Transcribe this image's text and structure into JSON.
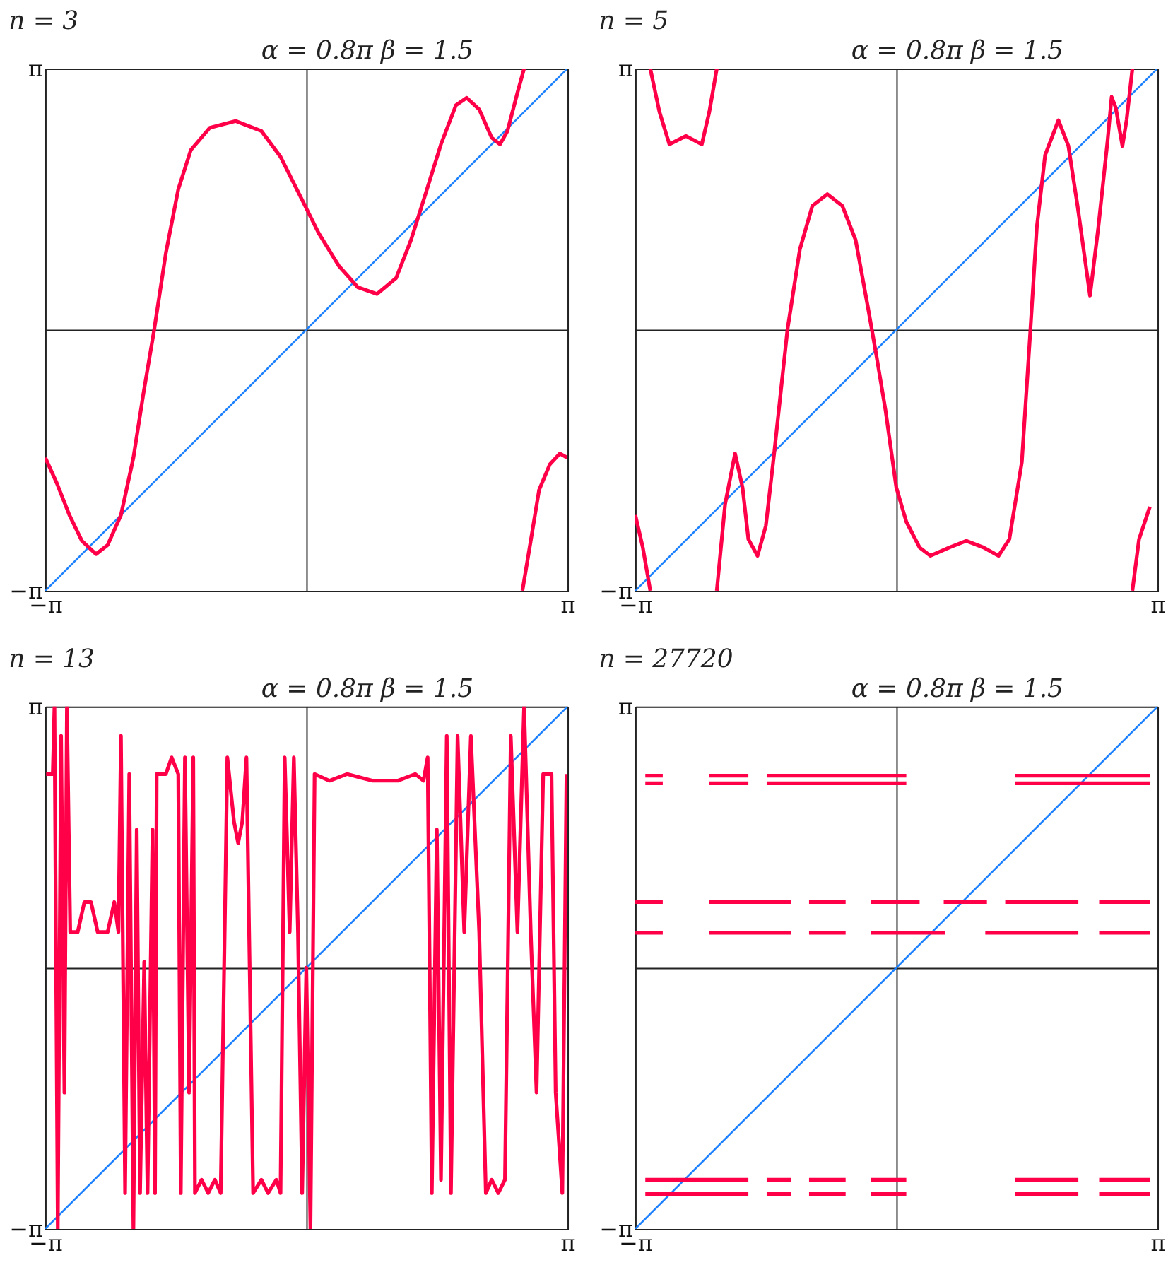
{
  "chart_data": [
    {
      "type": "line",
      "title": "n = 3",
      "annotations": [
        "α = 0.8π   β = 1.5"
      ],
      "xlim": [
        -3.1416,
        3.1416
      ],
      "ylim": [
        -3.1416,
        3.1416
      ],
      "xticks": [
        {
          "value": -3.1416,
          "label": "−π"
        },
        {
          "value": 0,
          "label": null
        },
        {
          "value": 3.1416,
          "label": "π"
        }
      ],
      "yticks": [
        {
          "value": -3.1416,
          "label": "−π"
        },
        {
          "value": 0,
          "label": null
        },
        {
          "value": 3.1416,
          "label": "π"
        }
      ],
      "grid": true,
      "series": [
        {
          "color": "#1e82ff",
          "x": [
            -3.1416,
            3.1416
          ],
          "values": [
            -3.1416,
            3.1416
          ]
        },
        {
          "color": "#ff0048",
          "x": [
            -3.14,
            -3.0,
            -2.85,
            -2.7,
            -2.53,
            -2.39,
            -2.23,
            -2.08,
            -1.96,
            -1.83,
            -1.69,
            -1.54,
            -1.39,
            -1.16,
            -0.85,
            -0.54,
            -0.31,
            -0.08,
            0.15,
            0.39,
            0.62,
            0.85,
            1.08,
            1.26,
            1.43,
            1.62,
            1.8,
            1.93,
            2.08,
            2.23,
            2.33,
            2.42,
            2.54,
            2.62,
            null,
            2.6,
            2.7,
            2.8,
            2.93,
            3.05,
            3.14
          ],
          "values": [
            -1.54,
            -1.85,
            -2.23,
            -2.54,
            -2.7,
            -2.59,
            -2.23,
            -1.54,
            -0.77,
            0,
            0.92,
            1.69,
            2.16,
            2.43,
            2.51,
            2.39,
            2.08,
            1.62,
            1.16,
            0.77,
            0.51,
            0.43,
            0.62,
            1.08,
            1.62,
            2.23,
            2.7,
            2.79,
            2.65,
            2.31,
            2.23,
            2.39,
            2.85,
            3.14,
            null,
            -3.14,
            -2.54,
            -1.93,
            -1.62,
            -1.49,
            -1.54
          ]
        }
      ]
    },
    {
      "type": "line",
      "title": "n = 5",
      "annotations": [
        "α = 0.8π   β = 1.5"
      ],
      "xlim": [
        -3.1416,
        3.1416
      ],
      "ylim": [
        -3.1416,
        3.1416
      ],
      "xticks": [
        {
          "value": -3.1416,
          "label": "−π"
        },
        {
          "value": 0,
          "label": null
        },
        {
          "value": 3.1416,
          "label": "π"
        }
      ],
      "yticks": [
        {
          "value": -3.1416,
          "label": "−π"
        },
        {
          "value": 0,
          "label": null
        },
        {
          "value": 3.1416,
          "label": "π"
        }
      ],
      "grid": true,
      "series": [
        {
          "color": "#1e82ff",
          "x": [
            -3.1416,
            3.1416
          ],
          "values": [
            -3.1416,
            3.1416
          ]
        },
        {
          "color": "#ff0048",
          "x": [
            -3.14,
            -3.05,
            -2.96,
            null,
            -2.96,
            -2.85,
            -2.73,
            -2.53,
            -2.34,
            -2.25,
            -2.16,
            null,
            -2.16,
            -2.06,
            -1.94,
            -1.85,
            -1.78,
            -1.67,
            -1.57,
            -1.47,
            -1.31,
            -1.16,
            -1.01,
            -0.83,
            -0.65,
            -0.49,
            -0.34,
            -0.24,
            -0.13,
            0.0,
            0.12,
            0.28,
            0.41,
            0.64,
            0.84,
            1.05,
            1.23,
            1.36,
            1.51,
            1.61,
            1.69,
            1.79,
            1.95,
            2.07,
            2.18,
            2.33,
            2.43,
            2.54,
            2.59,
            2.64,
            2.72,
            2.77,
            2.84,
            null,
            2.84,
            2.92,
            3.05
          ],
          "values": [
            -2.23,
            -2.62,
            -3.14,
            null,
            3.14,
            2.62,
            2.23,
            2.33,
            2.23,
            2.62,
            3.14,
            null,
            -3.14,
            -2.1,
            -1.49,
            -1.9,
            -2.52,
            -2.72,
            -2.36,
            -1.49,
            0,
            0.97,
            1.49,
            1.63,
            1.49,
            1.08,
            0.26,
            -0.31,
            -0.97,
            -1.9,
            -2.31,
            -2.62,
            -2.72,
            -2.62,
            -2.54,
            -2.62,
            -2.72,
            -2.52,
            -1.59,
            -0.05,
            1.23,
            2.1,
            2.52,
            2.21,
            1.49,
            0.41,
            1.23,
            2.26,
            2.8,
            2.67,
            2.21,
            2.52,
            3.14,
            null,
            -3.14,
            -2.52,
            -2.13
          ]
        }
      ]
    },
    {
      "type": "line",
      "title": "n = 13",
      "annotations": [
        "α = 0.8π   β = 1.5"
      ],
      "xlim": [
        -3.1416,
        3.1416
      ],
      "ylim": [
        -3.1416,
        3.1416
      ],
      "xticks": [
        {
          "value": -3.1416,
          "label": "−π"
        },
        {
          "value": 0,
          "label": null
        },
        {
          "value": 3.1416,
          "label": "π"
        }
      ],
      "yticks": [
        {
          "value": -3.1416,
          "label": "−π"
        },
        {
          "value": 0,
          "label": null
        },
        {
          "value": 3.1416,
          "label": "π"
        }
      ],
      "grid": true,
      "series": [
        {
          "color": "#1e82ff",
          "x": [
            -3.1416,
            3.1416
          ],
          "values": [
            -3.1416,
            3.1416
          ]
        },
        {
          "color": "#ff0048",
          "x": [
            -3.13,
            -3.05,
            -3.03,
            -2.99,
            -2.95,
            -2.91,
            -2.88,
            -2.84,
            -2.75,
            -2.67,
            -2.59,
            -2.51,
            -2.39,
            -2.31,
            -2.26,
            -2.23,
            -2.18,
            -2.13,
            -2.08,
            -2.04,
            -2.0,
            -1.95,
            -1.91,
            -1.85,
            -1.82,
            -1.8,
            -1.69,
            -1.62,
            -1.54,
            -1.51,
            -1.46,
            -1.41,
            -1.36,
            -1.34,
            -1.26,
            -1.18,
            -1.1,
            -1.03,
            -0.95,
            -0.87,
            -0.82,
            -0.77,
            -0.72,
            -0.64,
            -0.54,
            -0.46,
            -0.36,
            -0.31,
            -0.26,
            -0.2,
            -0.15,
            -0.1,
            -0.05,
            0.0,
            0.05,
            0.1,
            0.28,
            0.49,
            0.8,
            1.1,
            1.31,
            1.41,
            1.46,
            1.51,
            1.57,
            1.62,
            1.69,
            1.74,
            1.82,
            1.9,
            1.98,
            2.08,
            2.16,
            2.23,
            2.31,
            2.39,
            2.46,
            2.54,
            2.62,
            2.7,
            2.77,
            2.85,
            2.95,
            3.0,
            3.08,
            3.13
          ],
          "values": [
            2.33,
            2.33,
            3.14,
            -3.14,
            2.79,
            -1.5,
            3.14,
            0.43,
            0.43,
            0.79,
            0.79,
            0.43,
            0.43,
            0.79,
            0.43,
            2.79,
            -2.71,
            2.33,
            -3.14,
            1.66,
            -2.71,
            0.07,
            -2.71,
            1.66,
            -2.71,
            2.33,
            2.33,
            2.53,
            2.33,
            -2.71,
            2.53,
            -1.5,
            2.53,
            -2.71,
            -2.55,
            -2.71,
            -2.55,
            -2.71,
            2.53,
            1.76,
            1.5,
            1.76,
            2.53,
            -2.71,
            -2.55,
            -2.71,
            -2.55,
            -2.71,
            2.53,
            0.43,
            2.53,
            0.43,
            -2.71,
            0,
            -3.14,
            2.33,
            2.25,
            2.33,
            2.25,
            2.25,
            2.33,
            2.25,
            2.53,
            -2.71,
            1.66,
            -2.55,
            2.79,
            -2.71,
            2.79,
            0.43,
            2.79,
            0.43,
            -2.71,
            -2.55,
            -2.71,
            -2.55,
            2.79,
            0.43,
            3.14,
            0.43,
            -1.5,
            2.33,
            2.33,
            -1.5,
            -2.71,
            2.33
          ]
        }
      ]
    },
    {
      "type": "line",
      "title": "n = 27720",
      "annotations": [
        "α = 0.8π   β = 1.5"
      ],
      "xlim": [
        -3.1416,
        3.1416
      ],
      "ylim": [
        -3.1416,
        3.1416
      ],
      "xticks": [
        {
          "value": -3.1416,
          "label": "−π"
        },
        {
          "value": 0,
          "label": null
        },
        {
          "value": 3.1416,
          "label": "π"
        }
      ],
      "yticks": [
        {
          "value": -3.1416,
          "label": "−π"
        },
        {
          "value": 0,
          "label": null
        },
        {
          "value": 3.1416,
          "label": "π"
        }
      ],
      "grid": true,
      "series": [
        {
          "color": "#1e82ff",
          "x": [
            -3.1416,
            3.1416
          ],
          "values": [
            -3.1416,
            3.1416
          ]
        },
        {
          "color": "#ff0048",
          "x": [
            -3.02,
            -2.81,
            null,
            -2.25,
            -1.78,
            null,
            -1.56,
            0.12,
            null,
            1.43,
            3.05
          ],
          "values": [
            2.31,
            2.31,
            null,
            2.31,
            2.31,
            null,
            2.31,
            2.31,
            null,
            2.31,
            2.31
          ]
        },
        {
          "color": "#ff0048",
          "x": [
            -3.02,
            -2.81,
            null,
            -2.25,
            -1.78,
            null,
            -1.56,
            0.12,
            null,
            1.43,
            3.05
          ],
          "values": [
            2.22,
            2.22,
            null,
            2.22,
            2.22,
            null,
            2.22,
            2.22,
            null,
            2.22,
            2.22
          ]
        },
        {
          "color": "#ff0048",
          "x": [
            -3.14,
            -2.81,
            null,
            -2.25,
            -1.27,
            null,
            -1.05,
            -0.61,
            null,
            -0.31,
            0.28,
            null,
            0.57,
            1.09,
            null,
            1.31,
            2.19,
            null,
            2.44,
            3.05
          ],
          "values": [
            0.79,
            0.79,
            null,
            0.79,
            0.79,
            null,
            0.79,
            0.79,
            null,
            0.79,
            0.79,
            null,
            0.79,
            0.79,
            null,
            0.79,
            0.79,
            null,
            0.79,
            0.79
          ]
        },
        {
          "color": "#ff0048",
          "x": [
            -3.14,
            -2.81,
            null,
            -2.25,
            -1.27,
            null,
            -1.05,
            -0.61,
            null,
            -0.31,
            0.59,
            null,
            1.07,
            2.19,
            null,
            2.44,
            3.05
          ],
          "values": [
            0.42,
            0.42,
            null,
            0.42,
            0.42,
            null,
            0.42,
            0.42,
            null,
            0.42,
            0.42,
            null,
            0.42,
            0.42,
            null,
            0.42,
            0.42
          ]
        },
        {
          "color": "#ff0048",
          "x": [
            -3.02,
            -1.78,
            null,
            -1.56,
            -1.27,
            null,
            -1.05,
            -0.61,
            null,
            -0.31,
            0.12,
            null,
            1.43,
            2.19,
            null,
            2.44,
            3.05
          ],
          "values": [
            -2.55,
            -2.55,
            null,
            -2.55,
            -2.55,
            null,
            -2.55,
            -2.55,
            null,
            -2.55,
            -2.55,
            null,
            -2.55,
            -2.55,
            null,
            -2.55,
            -2.55
          ]
        },
        {
          "color": "#ff0048",
          "x": [
            -3.02,
            -1.78,
            null,
            -1.56,
            -1.27,
            null,
            -1.05,
            -0.61,
            null,
            -0.31,
            0.12,
            null,
            1.43,
            2.19,
            null,
            2.44,
            3.05
          ],
          "values": [
            -2.72,
            -2.72,
            null,
            -2.72,
            -2.72,
            null,
            -2.72,
            -2.72,
            null,
            -2.72,
            -2.72,
            null,
            -2.72,
            -2.72,
            null,
            -2.72,
            -2.72
          ]
        }
      ]
    }
  ]
}
